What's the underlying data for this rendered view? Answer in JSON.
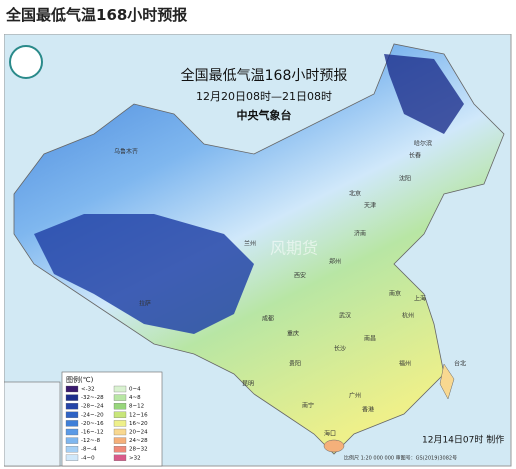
{
  "header": {
    "title": "全国最低气温168小时预报"
  },
  "map": {
    "title": "全国最低气温168小时预报",
    "period": "12月20日08时—21日08时",
    "issuer": "中央气象台",
    "made": "12月14日07时 制作",
    "footer": "比例尺 1:20 000 000  审图号：GS(2019)3082号",
    "watermark": "风期货",
    "cities": [
      "乌鲁木齐",
      "哈尔滨",
      "长春",
      "沈阳",
      "北京",
      "天津",
      "济南",
      "郑州",
      "西安",
      "兰州",
      "拉萨",
      "成都",
      "重庆",
      "武汉",
      "南京",
      "上海",
      "杭州",
      "长沙",
      "南昌",
      "福州",
      "贵阳",
      "昆明",
      "南宁",
      "广州",
      "香港",
      "海口",
      "台北"
    ]
  },
  "legend": {
    "title": "图例(℃)",
    "items": [
      {
        "label": "<-32",
        "color": "#3a1a6e"
      },
      {
        "label": "-32~-28",
        "color": "#1d2f8c"
      },
      {
        "label": "-28~-24",
        "color": "#2545a8"
      },
      {
        "label": "-24~-20",
        "color": "#2f63c4"
      },
      {
        "label": "-20~-16",
        "color": "#3f7fd8"
      },
      {
        "label": "-16~-12",
        "color": "#5b9ae6"
      },
      {
        "label": "-12~-8",
        "color": "#7fb7ef"
      },
      {
        "label": "-8~-4",
        "color": "#a5d0f5"
      },
      {
        "label": "-4~0",
        "color": "#d0e8fa"
      },
      {
        "label": "0~4",
        "color": "#d9f2d0"
      },
      {
        "label": "4~8",
        "color": "#b8e6a4"
      },
      {
        "label": "8~12",
        "color": "#98d67c"
      },
      {
        "label": "12~16",
        "color": "#c8e67a"
      },
      {
        "label": "16~20",
        "color": "#eef08a"
      },
      {
        "label": "20~24",
        "color": "#f8d890"
      },
      {
        "label": "24~28",
        "color": "#f5b07a"
      },
      {
        "label": "28~32",
        "color": "#ef8a7a"
      },
      {
        "label": ">32",
        "color": "#d85a8a"
      }
    ]
  }
}
